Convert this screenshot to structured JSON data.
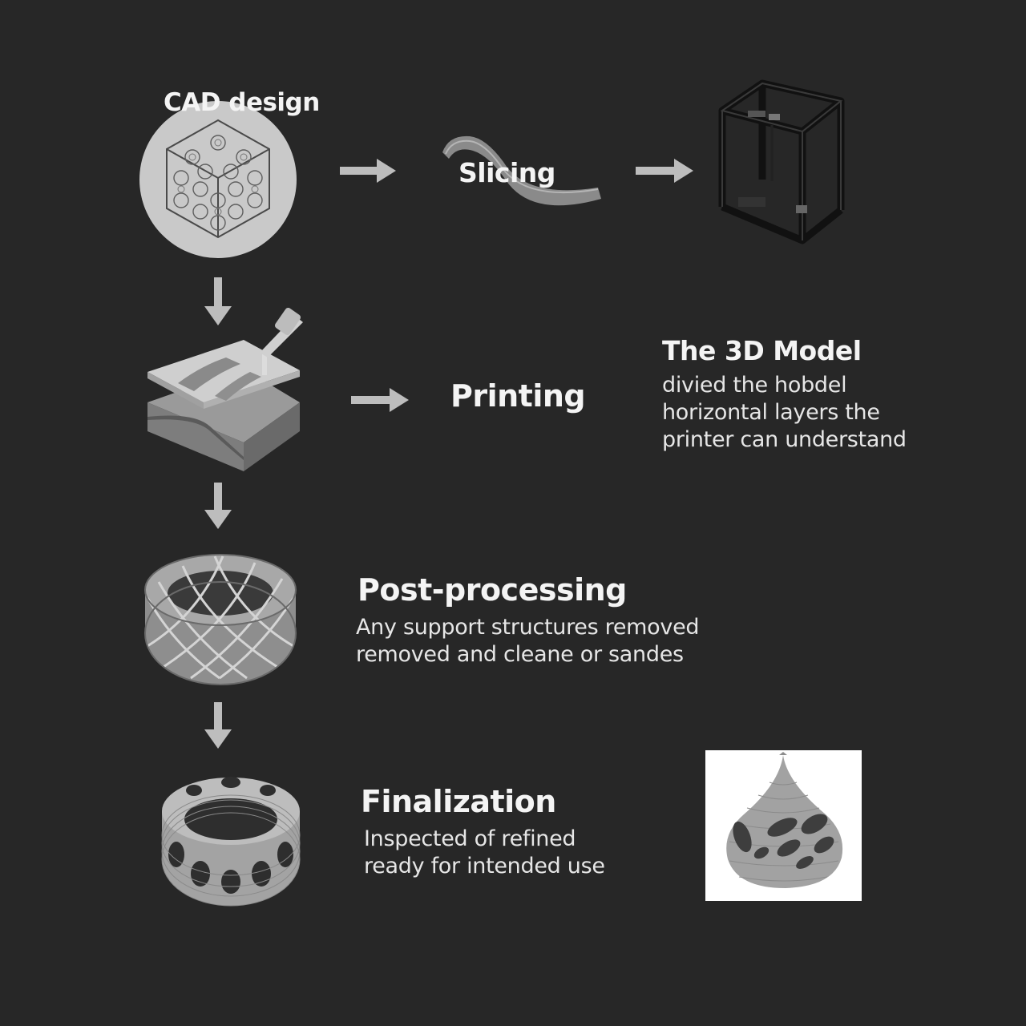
{
  "steps": {
    "cad": {
      "title": "CAD design"
    },
    "slicing": {
      "title": "Slicing"
    },
    "printing": {
      "title": "Printing"
    },
    "model": {
      "title": "The 3D Model",
      "desc_1": "divied the hob",
      "desc_1b": "del",
      "desc_2": "horizontal layers the",
      "desc_3": "printer can understand"
    },
    "post": {
      "title": "Post-processing",
      "desc_1": "Any support structures removed",
      "desc_2": "removed and cleane or sandes"
    },
    "final": {
      "title": "Finalization",
      "desc_1": "Inspected of refined",
      "desc_2": "ready for intended use"
    }
  },
  "icons": {
    "cad": "lattice-cube-icon",
    "slicing": "bent-strip-icon",
    "printer": "3d-printer-icon",
    "printing": "extruder-layers-icon",
    "post": "woven-ring-icon",
    "final": "perforated-ring-icon",
    "result": "perforated-teardrop-icon",
    "arrow": "arrow-icon"
  },
  "colors": {
    "background": "#272727",
    "text": "#f2f2f2",
    "arrow": "#bdbdbd",
    "object": "#a9a9a9"
  }
}
